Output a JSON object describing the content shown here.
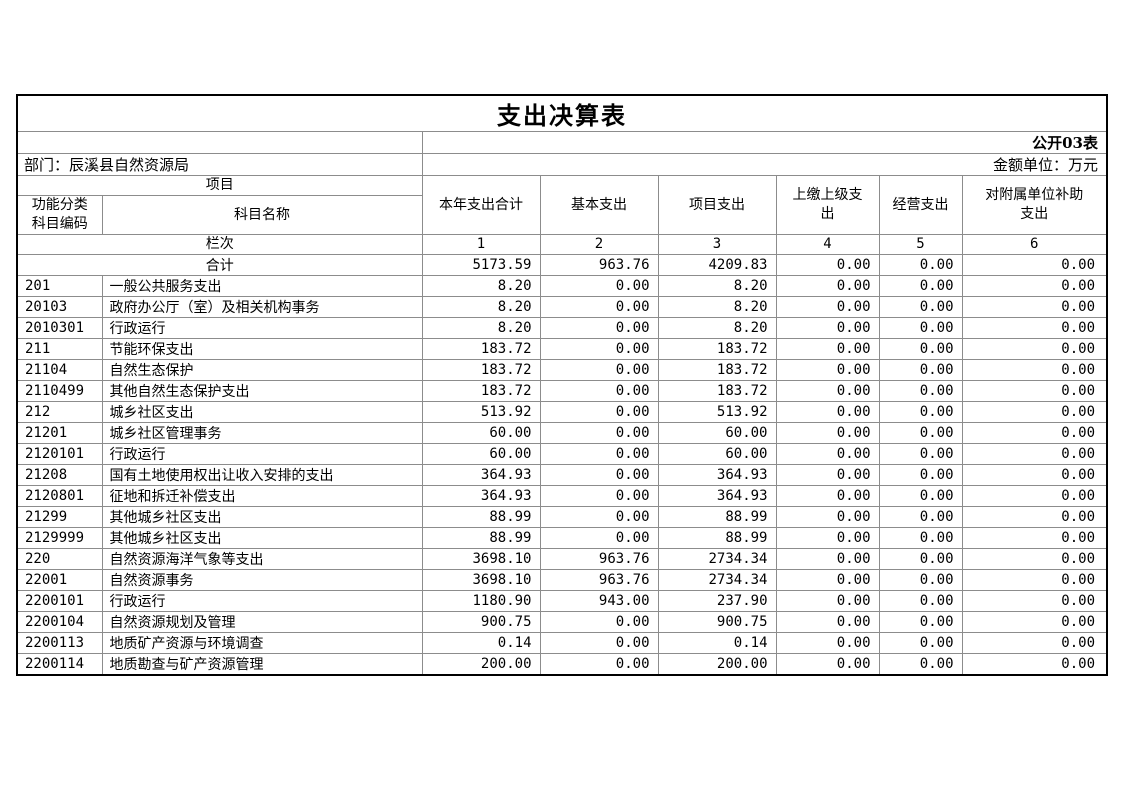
{
  "title": "支出决算表",
  "meta": {
    "sheet_label": "公开03表",
    "department": "部门：辰溪县自然资源局",
    "unit_label": "金额单位：万元"
  },
  "header": {
    "project": "项目",
    "code_label": "功能分类\n科目编码",
    "subject_label": "科目名称",
    "columns": [
      "本年支出合计",
      "基本支出",
      "项目支出",
      "上缴上级支\n出",
      "经营支出",
      "对附属单位补助\n支出"
    ],
    "index_label": "栏次",
    "column_numbers": [
      "1",
      "2",
      "3",
      "4",
      "5",
      "6"
    ]
  },
  "rows": [
    {
      "total": true,
      "code": "",
      "name": "合计",
      "values": [
        "5173.59",
        "963.76",
        "4209.83",
        "0.00",
        "0.00",
        "0.00"
      ]
    },
    {
      "code": "201",
      "name": "一般公共服务支出",
      "values": [
        "8.20",
        "0.00",
        "8.20",
        "0.00",
        "0.00",
        "0.00"
      ]
    },
    {
      "code": "20103",
      "name": "政府办公厅（室）及相关机构事务",
      "values": [
        "8.20",
        "0.00",
        "8.20",
        "0.00",
        "0.00",
        "0.00"
      ]
    },
    {
      "code": "2010301",
      "name": "行政运行",
      "values": [
        "8.20",
        "0.00",
        "8.20",
        "0.00",
        "0.00",
        "0.00"
      ]
    },
    {
      "code": "211",
      "name": "节能环保支出",
      "values": [
        "183.72",
        "0.00",
        "183.72",
        "0.00",
        "0.00",
        "0.00"
      ]
    },
    {
      "code": "21104",
      "name": "自然生态保护",
      "values": [
        "183.72",
        "0.00",
        "183.72",
        "0.00",
        "0.00",
        "0.00"
      ]
    },
    {
      "code": "2110499",
      "name": "其他自然生态保护支出",
      "values": [
        "183.72",
        "0.00",
        "183.72",
        "0.00",
        "0.00",
        "0.00"
      ]
    },
    {
      "code": "212",
      "name": "城乡社区支出",
      "values": [
        "513.92",
        "0.00",
        "513.92",
        "0.00",
        "0.00",
        "0.00"
      ]
    },
    {
      "code": "21201",
      "name": "城乡社区管理事务",
      "values": [
        "60.00",
        "0.00",
        "60.00",
        "0.00",
        "0.00",
        "0.00"
      ]
    },
    {
      "code": "2120101",
      "name": "行政运行",
      "values": [
        "60.00",
        "0.00",
        "60.00",
        "0.00",
        "0.00",
        "0.00"
      ]
    },
    {
      "code": "21208",
      "name": "国有土地使用权出让收入安排的支出",
      "values": [
        "364.93",
        "0.00",
        "364.93",
        "0.00",
        "0.00",
        "0.00"
      ]
    },
    {
      "code": "2120801",
      "name": "征地和拆迁补偿支出",
      "values": [
        "364.93",
        "0.00",
        "364.93",
        "0.00",
        "0.00",
        "0.00"
      ]
    },
    {
      "code": "21299",
      "name": "其他城乡社区支出",
      "values": [
        "88.99",
        "0.00",
        "88.99",
        "0.00",
        "0.00",
        "0.00"
      ]
    },
    {
      "code": "2129999",
      "name": "其他城乡社区支出",
      "values": [
        "88.99",
        "0.00",
        "88.99",
        "0.00",
        "0.00",
        "0.00"
      ]
    },
    {
      "code": "220",
      "name": "自然资源海洋气象等支出",
      "values": [
        "3698.10",
        "963.76",
        "2734.34",
        "0.00",
        "0.00",
        "0.00"
      ]
    },
    {
      "code": "22001",
      "name": "自然资源事务",
      "values": [
        "3698.10",
        "963.76",
        "2734.34",
        "0.00",
        "0.00",
        "0.00"
      ]
    },
    {
      "code": "2200101",
      "name": "行政运行",
      "values": [
        "1180.90",
        "943.00",
        "237.90",
        "0.00",
        "0.00",
        "0.00"
      ]
    },
    {
      "code": "2200104",
      "name": "自然资源规划及管理",
      "values": [
        "900.75",
        "0.00",
        "900.75",
        "0.00",
        "0.00",
        "0.00"
      ]
    },
    {
      "code": "2200113",
      "name": "地质矿产资源与环境调查",
      "values": [
        "0.14",
        "0.00",
        "0.14",
        "0.00",
        "0.00",
        "0.00"
      ]
    },
    {
      "code": "2200114",
      "name": "地质勘查与矿产资源管理",
      "values": [
        "200.00",
        "0.00",
        "200.00",
        "0.00",
        "0.00",
        "0.00"
      ]
    }
  ],
  "colors": {
    "background": "#ffffff",
    "text": "#000000",
    "border_outer": "#000000",
    "border_inner": "#8c8c8c"
  }
}
